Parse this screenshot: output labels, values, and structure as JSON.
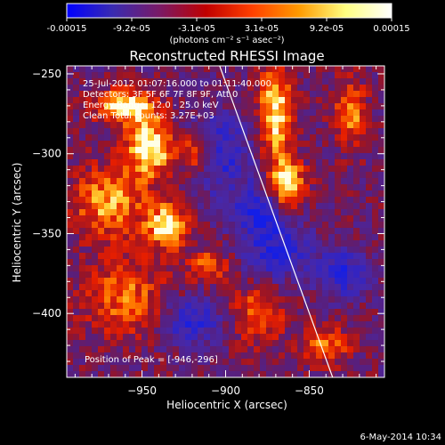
{
  "colorbar": {
    "tick_labels": [
      "-0.00015",
      "-9.2e-05",
      "-3.1e-05",
      "3.1e-05",
      "9.2e-05",
      "0.00015"
    ],
    "unit_text": "(photons cm⁻² s⁻¹ asec⁻²)",
    "colors": [
      "#0000ff",
      "#3a2bb0",
      "#7a1a66",
      "#c00000",
      "#ff4000",
      "#ff9a00",
      "#ffff80",
      "#ffffff"
    ]
  },
  "chart_data": {
    "type": "heatmap",
    "title": "Reconstructed RHESSI Image",
    "xlabel": "Heliocentric X (arcsec)",
    "ylabel": "Heliocentric Y (arcsec)",
    "xlim": [
      -995,
      -805
    ],
    "ylim": [
      -440,
      -245
    ],
    "x_ticks": [
      -950,
      -900,
      -850
    ],
    "y_ticks": [
      -250,
      -300,
      -350,
      -400
    ],
    "info_lines": [
      "25-Jul-2012 01:07:16.000 to 01:11:40.000",
      "Detectors: 3F 5F 6F 7F 8F 9F, Att 0",
      "Energy Range: 12.0 - 25.0 keV",
      "Clean    Total counts: 3.27E+03"
    ],
    "peak_text": "Position of Peak = [-946,-296]",
    "limb_line": {
      "x": [
        -906,
        -836
      ],
      "y": [
        -238,
        -440
      ]
    },
    "value_range": [
      -0.00015,
      0.00015
    ]
  },
  "footer": {
    "date": "6-May-2014 10:34"
  }
}
